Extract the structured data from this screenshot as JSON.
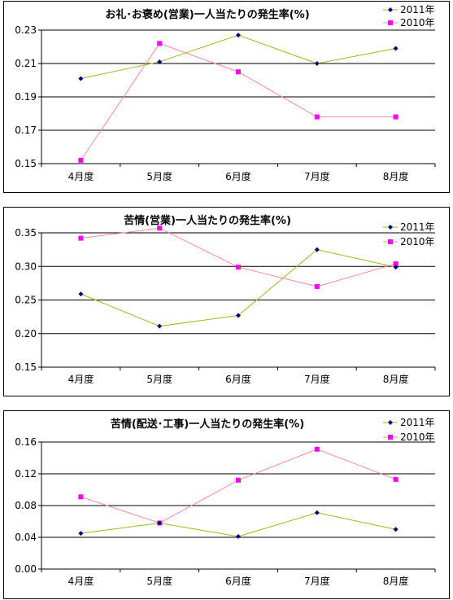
{
  "chart_data": [
    {
      "type": "line",
      "title": "お礼･お褒め(営業)一人当たりの発生率(%)",
      "categories": [
        "4月度",
        "5月度",
        "6月度",
        "7月度",
        "8月度"
      ],
      "ylim": [
        0.15,
        0.23
      ],
      "yticks": [
        "0.15",
        "0.17",
        "0.19",
        "0.21",
        "0.23"
      ],
      "grid": "horizontal",
      "legend": "top-right",
      "series": [
        {
          "name": "2011年",
          "values": [
            0.201,
            0.211,
            0.227,
            0.21,
            0.219
          ],
          "color": "#9aba1e",
          "marker_color": "#000080",
          "marker": "diamond"
        },
        {
          "name": "2010年",
          "values": [
            0.152,
            0.222,
            0.205,
            0.178,
            0.178
          ],
          "color": "#ff8aa0",
          "marker_color": "#ff00ff",
          "marker": "square"
        }
      ]
    },
    {
      "type": "line",
      "title": "苦情(営業)一人当たりの発生率(%)",
      "categories": [
        "4月度",
        "5月度",
        "6月度",
        "7月度",
        "8月度"
      ],
      "ylim": [
        0.15,
        0.35
      ],
      "yticks": [
        "0.15",
        "0.20",
        "0.25",
        "0.30",
        "0.35"
      ],
      "grid": "horizontal",
      "legend": "top-right",
      "series": [
        {
          "name": "2011年",
          "values": [
            0.259,
            0.211,
            0.227,
            0.325,
            0.299
          ],
          "color": "#9aba1e",
          "marker_color": "#000080",
          "marker": "diamond"
        },
        {
          "name": "2010年",
          "values": [
            0.342,
            0.357,
            0.299,
            0.27,
            0.304
          ],
          "color": "#ff8aa0",
          "marker_color": "#ff00ff",
          "marker": "square"
        }
      ]
    },
    {
      "type": "line",
      "title": "苦情(配送･工事)一人当たりの発生率(%)",
      "categories": [
        "4月度",
        "5月度",
        "6月度",
        "7月度",
        "8月度"
      ],
      "ylim": [
        0.0,
        0.16
      ],
      "yticks": [
        "0.00",
        "0.04",
        "0.08",
        "0.12",
        "0.16"
      ],
      "grid": "horizontal",
      "legend": "top-right",
      "series": [
        {
          "name": "2011年",
          "values": [
            0.045,
            0.058,
            0.041,
            0.071,
            0.05
          ],
          "color": "#9aba1e",
          "marker_color": "#000080",
          "marker": "diamond"
        },
        {
          "name": "2010年",
          "values": [
            0.091,
            0.058,
            0.112,
            0.151,
            0.113
          ],
          "color": "#ff8aa0",
          "marker_color": "#ff00ff",
          "marker": "square"
        }
      ]
    }
  ]
}
